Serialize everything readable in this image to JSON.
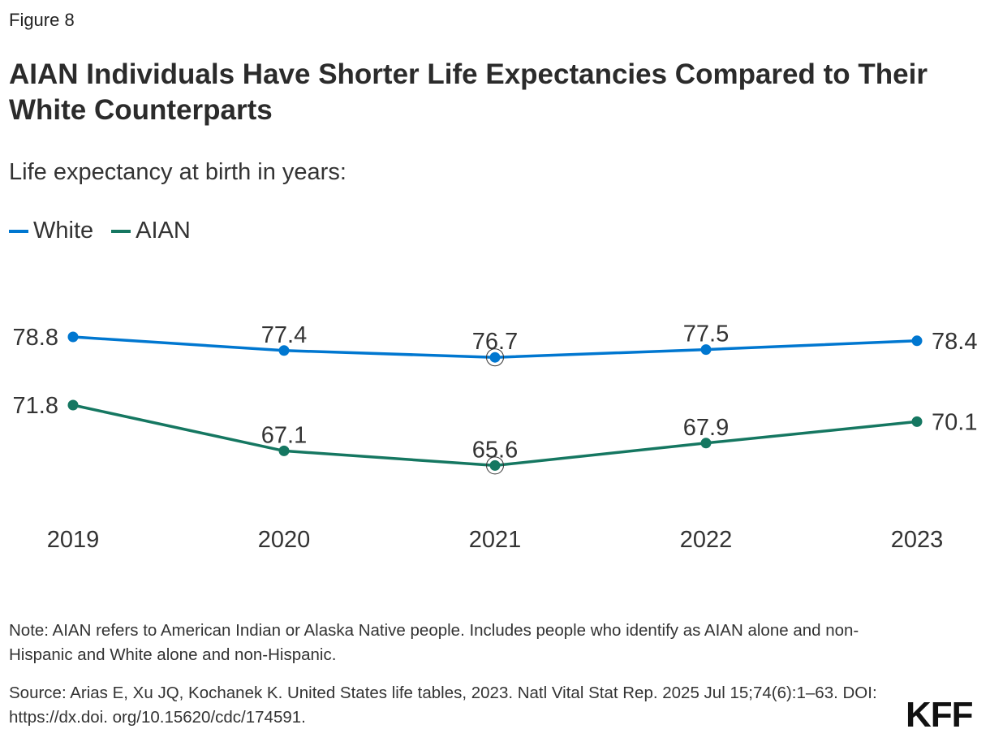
{
  "figure_label": "Figure 8",
  "title": "AIAN Individuals Have Shorter Life Expectancies Compared to Their White Counterparts",
  "subtitle": "Life expectancy at birth in years:",
  "note": "Note: AIAN refers to American Indian or Alaska Native people. Includes people who identify as AIAN alone and non-Hispanic and White alone and non-Hispanic.",
  "source": "Source: Arias E, Xu JQ, Kochanek K. United States life tables, 2023. Natl Vital Stat Rep. 2025 Jul 15;74(6):1–63. DOI: https://dx.doi. org/10.15620/cdc/174591.",
  "logo": "KFF",
  "chart_data": {
    "type": "line",
    "title": "AIAN Individuals Have Shorter Life Expectancies Compared to Their White Counterparts",
    "ylabel": "Life expectancy at birth in years",
    "categories": [
      "2019",
      "2020",
      "2021",
      "2022",
      "2023"
    ],
    "ylim": [
      64,
      80
    ],
    "grid": false,
    "legend": "top-left",
    "highlighted_category": "2021",
    "series": [
      {
        "name": "White",
        "color": "#0077d0",
        "values": [
          78.8,
          77.4,
          76.7,
          77.5,
          78.4
        ],
        "labels": [
          "78.8",
          "77.4",
          "76.7",
          "77.5",
          "78.4"
        ]
      },
      {
        "name": "AIAN",
        "color": "#157761",
        "values": [
          71.8,
          67.1,
          65.6,
          67.9,
          70.1
        ],
        "labels": [
          "71.8",
          "67.1",
          "65.6",
          "67.9",
          "70.1"
        ]
      }
    ]
  }
}
